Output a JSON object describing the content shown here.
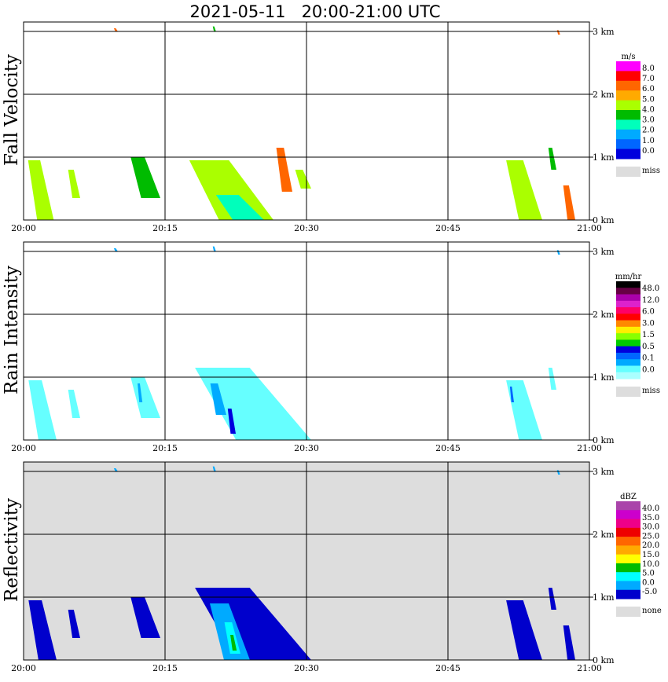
{
  "chart_data": {
    "type": "heatmap",
    "title": "2021-05-11   20:00-21:00 UTC",
    "x_tick_labels": [
      "20:00",
      "20:15",
      "20:30",
      "20:45",
      "21:00"
    ],
    "y_tick_labels": [
      "0 km",
      "1 km",
      "2 km",
      "3 km"
    ],
    "xlim_minutes": [
      0,
      60
    ],
    "ylim_km": [
      0,
      3.15
    ],
    "grid": true,
    "panels": [
      {
        "name": "Fall Velocity",
        "units": "m/s",
        "background": "#ffffff",
        "legend_labels": [
          "8.0",
          "7.0",
          "6.0",
          "5.0",
          "4.0",
          "3.0",
          "2.0",
          "1.0",
          "0.0"
        ],
        "legend_colors": [
          "#ff00ff",
          "#ff0000",
          "#ff6600",
          "#ffaa00",
          "#aaff00",
          "#00bb00",
          "#00ffbb",
          "#00aaff",
          "#0066ff",
          "#0000dd"
        ],
        "missing_label": "miss",
        "missing_color": "#dddddd",
        "echoes": [
          {
            "t0": 0.0,
            "t1": 3.2,
            "h0": 0.0,
            "h1": 0.95,
            "level": 4
          },
          {
            "t0": 4.5,
            "t1": 6.0,
            "h0": 0.35,
            "h1": 0.8,
            "level": 4
          },
          {
            "t0": 10.8,
            "t1": 14.5,
            "h0": 0.35,
            "h1": 1.0,
            "level": 5
          },
          {
            "t0": 16.0,
            "t1": 26.5,
            "h0": 0.0,
            "h1": 0.95,
            "level": 4
          },
          {
            "t0": 19.5,
            "t1": 25.5,
            "h0": 0.0,
            "h1": 0.4,
            "level": 6
          },
          {
            "t0": 26.5,
            "t1": 28.5,
            "h0": 0.45,
            "h1": 1.15,
            "level": 2
          },
          {
            "t0": 28.5,
            "t1": 30.5,
            "h0": 0.5,
            "h1": 0.8,
            "level": 4
          },
          {
            "t0": 50.5,
            "t1": 55.0,
            "h0": 0.0,
            "h1": 0.95,
            "level": 4
          },
          {
            "t0": 55.5,
            "t1": 56.5,
            "h0": 0.8,
            "h1": 1.15,
            "level": 5
          },
          {
            "t0": 57.0,
            "t1": 58.5,
            "h0": 0.0,
            "h1": 0.55,
            "level": 2
          },
          {
            "t0": 9.5,
            "t1": 10.0,
            "h0": 3.0,
            "h1": 3.05,
            "level": 2
          },
          {
            "t0": 20.0,
            "t1": 20.4,
            "h0": 3.0,
            "h1": 3.08,
            "level": 5
          },
          {
            "t0": 56.5,
            "t1": 56.9,
            "h0": 2.95,
            "h1": 3.02,
            "level": 2
          }
        ]
      },
      {
        "name": "Rain Intensity",
        "units": "mm/hr",
        "background": "#ffffff",
        "legend_labels": [
          "48.0",
          "12.0",
          "6.0",
          "3.0",
          "1.5",
          "0.5",
          "0.1",
          "0.0"
        ],
        "legend_colors": [
          "#000000",
          "#660044",
          "#aa00aa",
          "#dd22cc",
          "#ff0066",
          "#ff0000",
          "#ff8800",
          "#ffee00",
          "#88ff00",
          "#00cc00",
          "#0000dd",
          "#0066ff",
          "#00aaff",
          "#66ffff",
          "#aaffff"
        ],
        "missing_label": "miss",
        "missing_color": "#dddddd",
        "echoes": [
          {
            "t0": 0.0,
            "t1": 3.5,
            "h0": 0.0,
            "h1": 0.95,
            "level": 13
          },
          {
            "t0": 4.5,
            "t1": 6.0,
            "h0": 0.35,
            "h1": 0.8,
            "level": 13
          },
          {
            "t0": 10.8,
            "t1": 14.5,
            "h0": 0.35,
            "h1": 1.0,
            "level": 13
          },
          {
            "t0": 12.0,
            "t1": 12.6,
            "h0": 0.6,
            "h1": 0.9,
            "level": 12
          },
          {
            "t0": 16.0,
            "t1": 30.5,
            "h0": 0.0,
            "h1": 1.15,
            "level": 13
          },
          {
            "t0": 19.5,
            "t1": 21.5,
            "h0": 0.4,
            "h1": 0.9,
            "level": 12
          },
          {
            "t0": 21.5,
            "t1": 22.5,
            "h0": 0.1,
            "h1": 0.5,
            "level": 10
          },
          {
            "t0": 50.5,
            "t1": 55.0,
            "h0": 0.0,
            "h1": 0.95,
            "level": 13
          },
          {
            "t0": 51.5,
            "t1": 52.0,
            "h0": 0.6,
            "h1": 0.85,
            "level": 11
          },
          {
            "t0": 55.5,
            "t1": 56.5,
            "h0": 0.8,
            "h1": 1.15,
            "level": 13
          },
          {
            "t0": 9.5,
            "t1": 10.0,
            "h0": 3.0,
            "h1": 3.05,
            "level": 12
          },
          {
            "t0": 20.0,
            "t1": 20.4,
            "h0": 3.0,
            "h1": 3.08,
            "level": 12
          },
          {
            "t0": 56.5,
            "t1": 56.9,
            "h0": 2.95,
            "h1": 3.02,
            "level": 12
          }
        ]
      },
      {
        "name": "Reflectivity",
        "units": "dBZ",
        "background": "#dddddd",
        "legend_labels": [
          "40.0",
          "35.0",
          "30.0",
          "25.0",
          "20.0",
          "15.0",
          "10.0",
          "5.0",
          "0.0",
          "-5.0"
        ],
        "legend_colors": [
          "#aa44aa",
          "#cc00cc",
          "#ee0088",
          "#ee0000",
          "#ff6600",
          "#ffaa00",
          "#ffff00",
          "#00bb00",
          "#00ffff",
          "#00aaff",
          "#0000cc"
        ],
        "missing_label": "none",
        "missing_color": "#dddddd",
        "echoes": [
          {
            "t0": 0.0,
            "t1": 3.5,
            "h0": 0.0,
            "h1": 0.95,
            "level": 10
          },
          {
            "t0": 4.5,
            "t1": 6.0,
            "h0": 0.35,
            "h1": 0.8,
            "level": 10
          },
          {
            "t0": 10.8,
            "t1": 14.5,
            "h0": 0.35,
            "h1": 1.0,
            "level": 10
          },
          {
            "t0": 16.0,
            "t1": 30.5,
            "h0": 0.0,
            "h1": 1.15,
            "level": 10
          },
          {
            "t0": 19.0,
            "t1": 24.0,
            "h0": 0.0,
            "h1": 0.9,
            "level": 9
          },
          {
            "t0": 21.0,
            "t1": 23.0,
            "h0": 0.1,
            "h1": 0.6,
            "level": 8
          },
          {
            "t0": 21.8,
            "t1": 22.6,
            "h0": 0.15,
            "h1": 0.4,
            "level": 7
          },
          {
            "t0": 50.5,
            "t1": 55.0,
            "h0": 0.0,
            "h1": 0.95,
            "level": 10
          },
          {
            "t0": 55.5,
            "t1": 56.5,
            "h0": 0.8,
            "h1": 1.15,
            "level": 10
          },
          {
            "t0": 57.0,
            "t1": 58.5,
            "h0": 0.0,
            "h1": 0.55,
            "level": 10
          },
          {
            "t0": 9.5,
            "t1": 10.0,
            "h0": 3.0,
            "h1": 3.05,
            "level": 9
          },
          {
            "t0": 20.0,
            "t1": 20.4,
            "h0": 3.0,
            "h1": 3.08,
            "level": 9
          },
          {
            "t0": 56.5,
            "t1": 56.9,
            "h0": 2.95,
            "h1": 3.02,
            "level": 9
          }
        ]
      }
    ]
  }
}
